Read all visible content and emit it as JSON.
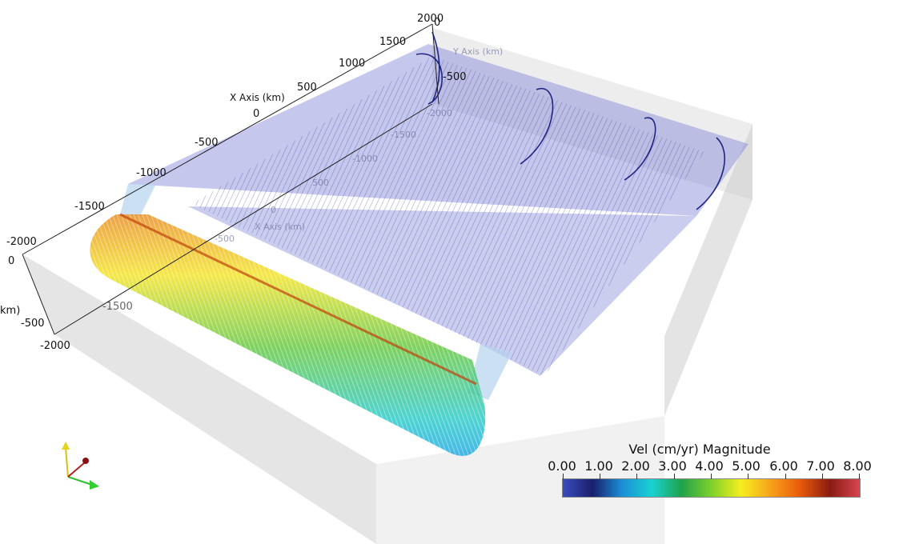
{
  "scene": {
    "x_axis": {
      "title": "X Axis (km)",
      "tick_labels": [
        "-2000",
        "-1500",
        "-1000",
        "-500",
        "0",
        "500",
        "1000",
        "1500",
        "2000"
      ]
    },
    "y_axis": {
      "title": "Y Axis (km)",
      "tick_labels": [
        "0",
        "-500"
      ],
      "ghost_tick_labels": [
        "-1000",
        "-1500",
        "-2000"
      ]
    },
    "x_axis_far": {
      "title": "X Axis (km)",
      "tick_labels": [
        "-1500",
        "-1000",
        "-500",
        "0",
        "500",
        "1000",
        "1500",
        "2000"
      ]
    },
    "z_axis": {
      "title": "km)",
      "tick_labels": [
        "0",
        "-500",
        "-2000"
      ]
    },
    "colors": {
      "slab_plane": "#7f83d6",
      "box_face": "#d9d9d9",
      "axis_line": "#222222"
    }
  },
  "legend": {
    "title": "Vel (cm/yr) Magnitude",
    "tick_labels": [
      "0.00",
      "1.00",
      "2.00",
      "3.00",
      "4.00",
      "5.00",
      "6.00",
      "7.00",
      "8.00"
    ],
    "range": [
      0,
      8
    ],
    "colormap": [
      "#3b4cc0",
      "#1a1f6b",
      "#1b8fd6",
      "#18d2d2",
      "#1fa24a",
      "#7dd12b",
      "#f5ee1f",
      "#f7a21a",
      "#e85a0b",
      "#8a1b12",
      "#d8454f"
    ]
  },
  "orientation": {
    "label": "orientation-axes"
  }
}
